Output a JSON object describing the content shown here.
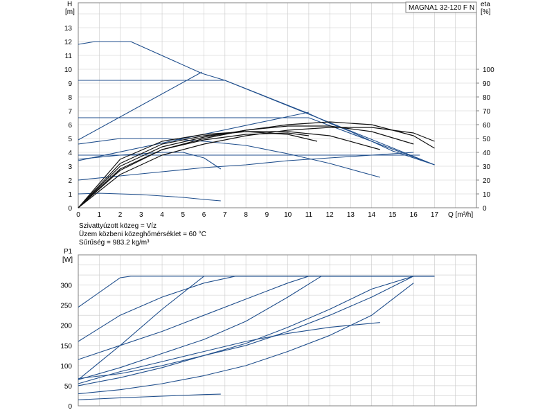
{
  "model_label": "MAGNA1 32-120 F N",
  "notes": [
    "Szivattyúzott közeg = Víz",
    "Üzem közbeni közeghőmérséklet = 60 °C",
    "Sűrűség = 983.2 kg/m³"
  ],
  "colors": {
    "curve": "#1f4e8c",
    "eta": "#111111",
    "grid": "#c9c9c9",
    "axis": "#808080"
  },
  "chart_data": [
    {
      "type": "line",
      "name": "head",
      "ylabel_top": "H",
      "ylabel_unit": "[m]",
      "y2label_top": "eta",
      "y2label_unit": "[%]",
      "xlabel": "Q [m³/h]",
      "xlim": [
        0,
        19
      ],
      "ylim": [
        0,
        14
      ],
      "y2lim": [
        0,
        140
      ],
      "x_ticks": [
        "0",
        "1",
        "2",
        "3",
        "4",
        "5",
        "6",
        "7",
        "8",
        "9",
        "10",
        "11",
        "12",
        "13",
        "14",
        "15",
        "16",
        "17"
      ],
      "y_ticks": [
        "0",
        "1",
        "2",
        "3",
        "4",
        "5",
        "6",
        "7",
        "8",
        "9",
        "10",
        "11",
        "12",
        "13"
      ],
      "y2_ticks": [
        "0",
        "10",
        "20",
        "30",
        "40",
        "50",
        "60",
        "70",
        "80",
        "90",
        "100"
      ],
      "grid": true,
      "head_series": [
        {
          "x": [
            0,
            0.8,
            2.5,
            5.9,
            7,
            9,
            11,
            12,
            13,
            14,
            15,
            16,
            17
          ],
          "y": [
            11.8,
            12,
            12,
            9.7,
            9.2,
            8.0,
            6.8,
            6.1,
            5.5,
            4.8,
            4.1,
            3.6,
            3.1
          ]
        },
        {
          "x": [
            0,
            7,
            17
          ],
          "y": [
            9.2,
            9.2,
            3.1
          ]
        },
        {
          "x": [
            0,
            5.9
          ],
          "y": [
            4.9,
            9.8
          ]
        },
        {
          "x": [
            0,
            11,
            17
          ],
          "y": [
            6.5,
            6.5,
            3.1
          ]
        },
        {
          "x": [
            0,
            11
          ],
          "y": [
            3.4,
            6.9
          ]
        },
        {
          "x": [
            0,
            2,
            4,
            6,
            8,
            10,
            12,
            14,
            16.3
          ],
          "y": [
            3.8,
            3.8,
            3.8,
            3.8,
            3.8,
            3.8,
            3.8,
            3.8,
            3.8
          ]
        },
        {
          "x": [
            0,
            2,
            4,
            6,
            8,
            10,
            12,
            14,
            16
          ],
          "y": [
            2.0,
            2.3,
            2.6,
            2.9,
            3.1,
            3.4,
            3.6,
            3.8,
            4.0
          ]
        },
        {
          "x": [
            0,
            2,
            4,
            6,
            8,
            10,
            12,
            14.4
          ],
          "y": [
            4.6,
            5.0,
            5.0,
            4.8,
            4.5,
            3.9,
            3.2,
            2.2
          ]
        },
        {
          "x": [
            0,
            1,
            2,
            3,
            4,
            5,
            6,
            6.8
          ],
          "y": [
            1.0,
            1.05,
            1.0,
            0.95,
            0.85,
            0.75,
            0.6,
            0.5
          ]
        },
        {
          "x": [
            0,
            2,
            4,
            5,
            6,
            6.8
          ],
          "y": [
            3.5,
            3.8,
            4.0,
            4.0,
            3.6,
            2.8
          ]
        }
      ],
      "eta_series": [
        {
          "x": [
            0,
            2,
            4,
            6,
            8,
            10,
            12,
            14,
            16,
            17
          ],
          "y": [
            0,
            28,
            42,
            50,
            56,
            60,
            62,
            60,
            52,
            43
          ]
        },
        {
          "x": [
            0,
            2,
            4,
            6,
            8,
            10,
            12,
            14,
            16
          ],
          "y": [
            0,
            30,
            44,
            51,
            56,
            59,
            59,
            55,
            46
          ]
        },
        {
          "x": [
            0,
            2,
            4,
            6,
            8,
            10,
            12,
            14.4
          ],
          "y": [
            0,
            32,
            46,
            52,
            55,
            55,
            52,
            42
          ]
        },
        {
          "x": [
            0,
            2,
            4,
            6,
            8,
            10,
            11.4
          ],
          "y": [
            0,
            35,
            48,
            53,
            55,
            53,
            48
          ]
        },
        {
          "x": [
            0,
            2,
            4,
            6,
            8,
            10,
            11
          ],
          "y": [
            0,
            27,
            42,
            49,
            53,
            54,
            52
          ]
        },
        {
          "x": [
            0,
            2,
            4,
            6,
            8,
            10,
            12,
            14,
            16,
            17
          ],
          "y": [
            0,
            24,
            38,
            46,
            52,
            56,
            58,
            58,
            54,
            48
          ]
        }
      ]
    },
    {
      "type": "line",
      "name": "power",
      "ylabel_top": "P1",
      "ylabel_unit": "[W]",
      "xlim": [
        0,
        19
      ],
      "ylim": [
        0,
        350
      ],
      "y_ticks": [
        "0",
        "50",
        "100",
        "150",
        "200",
        "250",
        "300"
      ],
      "grid": true,
      "series": [
        {
          "x": [
            0,
            2,
            2.5,
            17
          ],
          "y": [
            245,
            318,
            322,
            322
          ]
        },
        {
          "x": [
            0,
            2,
            4,
            6,
            7.5,
            17
          ],
          "y": [
            160,
            225,
            270,
            305,
            322,
            322
          ]
        },
        {
          "x": [
            0,
            2,
            4,
            6
          ],
          "y": [
            65,
            150,
            240,
            322
          ]
        },
        {
          "x": [
            0,
            2,
            4,
            6,
            8,
            10,
            11,
            17
          ],
          "y": [
            115,
            150,
            185,
            225,
            265,
            305,
            322,
            322
          ]
        },
        {
          "x": [
            0,
            2,
            4,
            6,
            8,
            10,
            11.6
          ],
          "y": [
            65,
            95,
            130,
            165,
            210,
            270,
            322
          ]
        },
        {
          "x": [
            0,
            2,
            4,
            6,
            8,
            10,
            12,
            14,
            16,
            17
          ],
          "y": [
            50,
            70,
            95,
            125,
            155,
            195,
            240,
            290,
            322,
            322
          ]
        },
        {
          "x": [
            0,
            2,
            4,
            6,
            8,
            10,
            12,
            14,
            16
          ],
          "y": [
            30,
            40,
            55,
            75,
            100,
            135,
            175,
            225,
            305
          ]
        },
        {
          "x": [
            0,
            2,
            4,
            6,
            8,
            10,
            12,
            14.4
          ],
          "y": [
            55,
            85,
            110,
            135,
            160,
            180,
            195,
            207
          ]
        },
        {
          "x": [
            0,
            2,
            4,
            6,
            6.8
          ],
          "y": [
            15,
            20,
            24,
            28,
            29
          ]
        },
        {
          "x": [
            0,
            2,
            4,
            6,
            8,
            10,
            12,
            14,
            16
          ],
          "y": [
            68,
            80,
            100,
            125,
            150,
            185,
            225,
            270,
            322
          ]
        }
      ]
    }
  ]
}
